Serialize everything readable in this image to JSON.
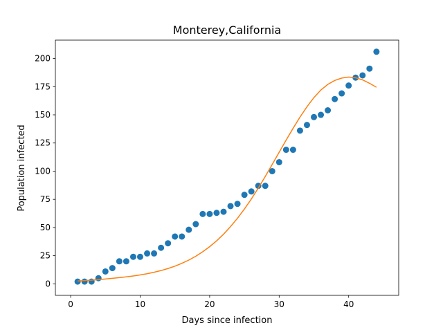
{
  "chart_data": {
    "type": "scatter",
    "title": "Monterey,California",
    "xlabel": "Days since infection",
    "ylabel": "Population infected",
    "xlim": [
      -2.2,
      47.2
    ],
    "ylim": [
      -10.2,
      216.3
    ],
    "xticks": [
      0,
      10,
      20,
      30,
      40
    ],
    "yticks": [
      0,
      25,
      50,
      75,
      100,
      125,
      150,
      175,
      200
    ],
    "grid": false,
    "legend": "none",
    "series": [
      {
        "kind": "scatter",
        "color": "#1f77b4",
        "x": [
          1,
          2,
          3,
          4,
          5,
          6,
          7,
          8,
          9,
          10,
          11,
          12,
          13,
          14,
          15,
          16,
          17,
          18,
          19,
          20,
          21,
          22,
          23,
          24,
          25,
          26,
          27,
          28,
          29,
          30,
          31,
          32,
          33,
          34,
          35,
          36,
          37,
          38,
          39,
          40,
          41,
          42,
          43,
          44
        ],
        "y": [
          2,
          2,
          2,
          5,
          11,
          14,
          20,
          20,
          24,
          24,
          27,
          27,
          32,
          36,
          42,
          42,
          48,
          53,
          62,
          62,
          63,
          64,
          69,
          71,
          79,
          82,
          87,
          87,
          100,
          108,
          119,
          119,
          136,
          141,
          148,
          150,
          154,
          164,
          169,
          176,
          183,
          185,
          191,
          206
        ]
      },
      {
        "kind": "line",
        "color": "#ff7f0e",
        "x": [
          1,
          2,
          3,
          4,
          5,
          6,
          7,
          8,
          9,
          10,
          11,
          12,
          13,
          14,
          15,
          16,
          17,
          18,
          19,
          20,
          21,
          22,
          23,
          24,
          25,
          26,
          27,
          28,
          29,
          30,
          31,
          32,
          33,
          34,
          35,
          36,
          37,
          38,
          39,
          40,
          41,
          42,
          43,
          44
        ],
        "y": [
          2.5,
          2.9,
          3.3,
          3.7,
          4.3,
          4.9,
          5.5,
          6.2,
          7.0,
          7.9,
          9.0,
          10.3,
          11.8,
          13.6,
          15.7,
          18.2,
          21.1,
          24.5,
          28.5,
          33.0,
          38.2,
          44.1,
          50.8,
          58.2,
          66.4,
          75.3,
          85.0,
          95.3,
          106.0,
          116.8,
          127.5,
          138.0,
          148.0,
          157.2,
          165.3,
          172.0,
          177.0,
          180.5,
          182.6,
          183.5,
          182.9,
          181.0,
          178.0,
          174.5
        ]
      }
    ]
  }
}
